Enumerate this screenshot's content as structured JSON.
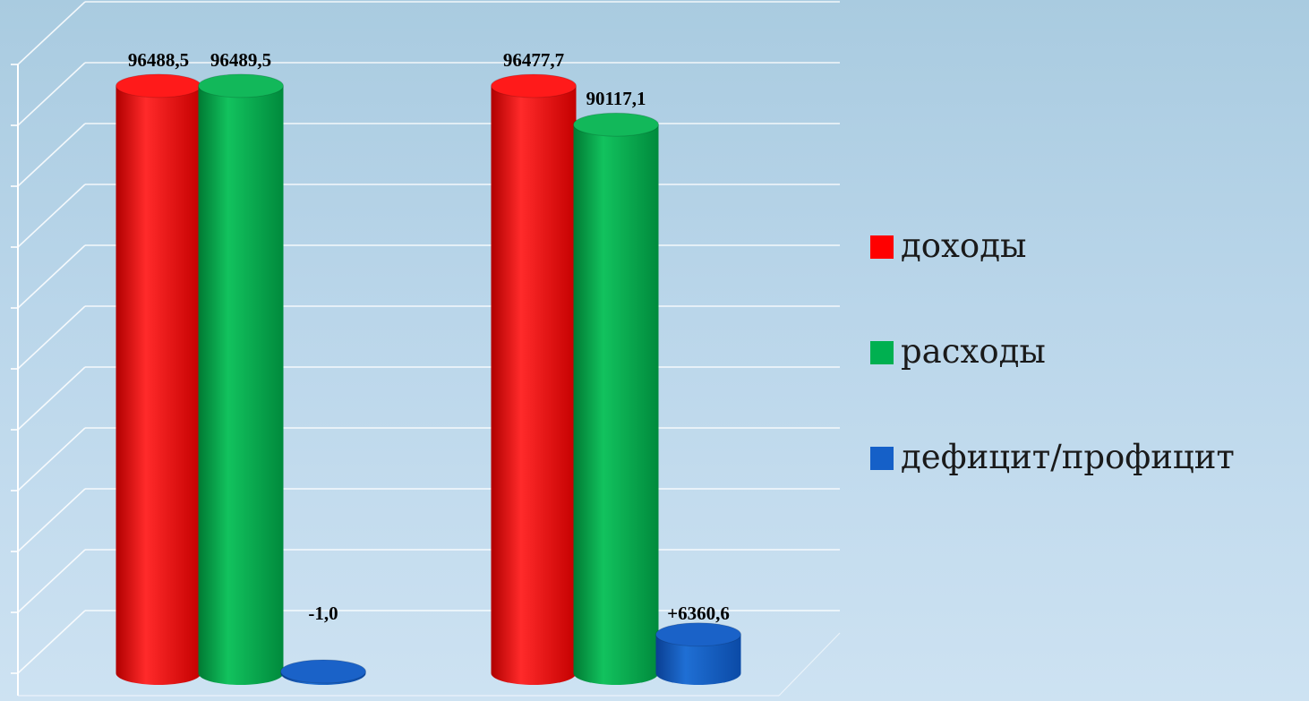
{
  "chart_data": {
    "type": "bar",
    "categories": [
      "",
      ""
    ],
    "series": [
      {
        "name": "доходы",
        "color": "#ff0000",
        "values": [
          96488.5,
          96477.7
        ],
        "labels": [
          "96488,5",
          "96477,7"
        ]
      },
      {
        "name": "расходы",
        "color": "#00b050",
        "values": [
          96489.5,
          90117.1
        ],
        "labels": [
          "96489,5",
          "90117,1"
        ]
      },
      {
        "name": "дефицит/профицит",
        "color": "#0070c0",
        "values": [
          -1.0,
          6360.6
        ],
        "labels": [
          "-1,0",
          "+6360,6"
        ]
      }
    ],
    "ylim": [
      0,
      100000
    ],
    "grid": true,
    "legend_position": "right"
  }
}
